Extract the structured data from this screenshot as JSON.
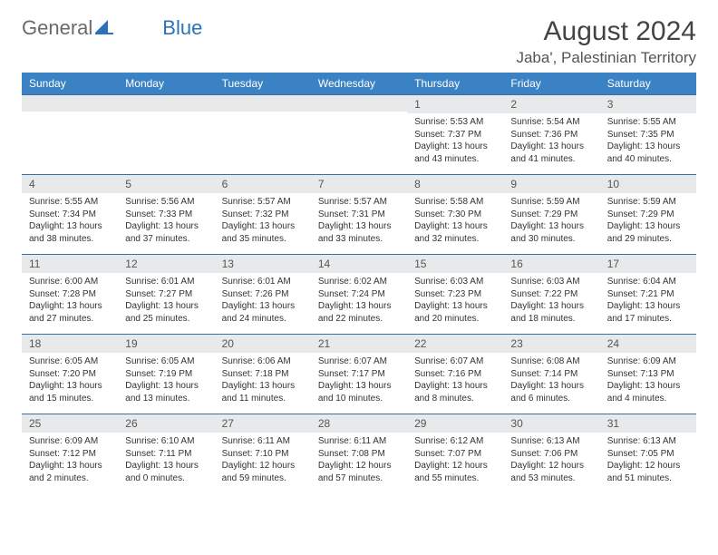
{
  "logo": {
    "text1": "General",
    "text2": "Blue"
  },
  "title": "August 2024",
  "location": "Jaba', Palestinian Territory",
  "colors": {
    "header_bg": "#3b82c4",
    "header_text": "#ffffff",
    "daynum_bg": "#e8e9ea",
    "row_border": "#3b6fa0",
    "page_bg": "#ffffff",
    "logo_gray": "#6a6a6a",
    "logo_blue": "#2d72b8"
  },
  "weekdays": [
    "Sunday",
    "Monday",
    "Tuesday",
    "Wednesday",
    "Thursday",
    "Friday",
    "Saturday"
  ],
  "weeks": [
    [
      {
        "n": "",
        "sr": "",
        "ss": "",
        "dl": ""
      },
      {
        "n": "",
        "sr": "",
        "ss": "",
        "dl": ""
      },
      {
        "n": "",
        "sr": "",
        "ss": "",
        "dl": ""
      },
      {
        "n": "",
        "sr": "",
        "ss": "",
        "dl": ""
      },
      {
        "n": "1",
        "sr": "Sunrise: 5:53 AM",
        "ss": "Sunset: 7:37 PM",
        "dl": "Daylight: 13 hours and 43 minutes."
      },
      {
        "n": "2",
        "sr": "Sunrise: 5:54 AM",
        "ss": "Sunset: 7:36 PM",
        "dl": "Daylight: 13 hours and 41 minutes."
      },
      {
        "n": "3",
        "sr": "Sunrise: 5:55 AM",
        "ss": "Sunset: 7:35 PM",
        "dl": "Daylight: 13 hours and 40 minutes."
      }
    ],
    [
      {
        "n": "4",
        "sr": "Sunrise: 5:55 AM",
        "ss": "Sunset: 7:34 PM",
        "dl": "Daylight: 13 hours and 38 minutes."
      },
      {
        "n": "5",
        "sr": "Sunrise: 5:56 AM",
        "ss": "Sunset: 7:33 PM",
        "dl": "Daylight: 13 hours and 37 minutes."
      },
      {
        "n": "6",
        "sr": "Sunrise: 5:57 AM",
        "ss": "Sunset: 7:32 PM",
        "dl": "Daylight: 13 hours and 35 minutes."
      },
      {
        "n": "7",
        "sr": "Sunrise: 5:57 AM",
        "ss": "Sunset: 7:31 PM",
        "dl": "Daylight: 13 hours and 33 minutes."
      },
      {
        "n": "8",
        "sr": "Sunrise: 5:58 AM",
        "ss": "Sunset: 7:30 PM",
        "dl": "Daylight: 13 hours and 32 minutes."
      },
      {
        "n": "9",
        "sr": "Sunrise: 5:59 AM",
        "ss": "Sunset: 7:29 PM",
        "dl": "Daylight: 13 hours and 30 minutes."
      },
      {
        "n": "10",
        "sr": "Sunrise: 5:59 AM",
        "ss": "Sunset: 7:29 PM",
        "dl": "Daylight: 13 hours and 29 minutes."
      }
    ],
    [
      {
        "n": "11",
        "sr": "Sunrise: 6:00 AM",
        "ss": "Sunset: 7:28 PM",
        "dl": "Daylight: 13 hours and 27 minutes."
      },
      {
        "n": "12",
        "sr": "Sunrise: 6:01 AM",
        "ss": "Sunset: 7:27 PM",
        "dl": "Daylight: 13 hours and 25 minutes."
      },
      {
        "n": "13",
        "sr": "Sunrise: 6:01 AM",
        "ss": "Sunset: 7:26 PM",
        "dl": "Daylight: 13 hours and 24 minutes."
      },
      {
        "n": "14",
        "sr": "Sunrise: 6:02 AM",
        "ss": "Sunset: 7:24 PM",
        "dl": "Daylight: 13 hours and 22 minutes."
      },
      {
        "n": "15",
        "sr": "Sunrise: 6:03 AM",
        "ss": "Sunset: 7:23 PM",
        "dl": "Daylight: 13 hours and 20 minutes."
      },
      {
        "n": "16",
        "sr": "Sunrise: 6:03 AM",
        "ss": "Sunset: 7:22 PM",
        "dl": "Daylight: 13 hours and 18 minutes."
      },
      {
        "n": "17",
        "sr": "Sunrise: 6:04 AM",
        "ss": "Sunset: 7:21 PM",
        "dl": "Daylight: 13 hours and 17 minutes."
      }
    ],
    [
      {
        "n": "18",
        "sr": "Sunrise: 6:05 AM",
        "ss": "Sunset: 7:20 PM",
        "dl": "Daylight: 13 hours and 15 minutes."
      },
      {
        "n": "19",
        "sr": "Sunrise: 6:05 AM",
        "ss": "Sunset: 7:19 PM",
        "dl": "Daylight: 13 hours and 13 minutes."
      },
      {
        "n": "20",
        "sr": "Sunrise: 6:06 AM",
        "ss": "Sunset: 7:18 PM",
        "dl": "Daylight: 13 hours and 11 minutes."
      },
      {
        "n": "21",
        "sr": "Sunrise: 6:07 AM",
        "ss": "Sunset: 7:17 PM",
        "dl": "Daylight: 13 hours and 10 minutes."
      },
      {
        "n": "22",
        "sr": "Sunrise: 6:07 AM",
        "ss": "Sunset: 7:16 PM",
        "dl": "Daylight: 13 hours and 8 minutes."
      },
      {
        "n": "23",
        "sr": "Sunrise: 6:08 AM",
        "ss": "Sunset: 7:14 PM",
        "dl": "Daylight: 13 hours and 6 minutes."
      },
      {
        "n": "24",
        "sr": "Sunrise: 6:09 AM",
        "ss": "Sunset: 7:13 PM",
        "dl": "Daylight: 13 hours and 4 minutes."
      }
    ],
    [
      {
        "n": "25",
        "sr": "Sunrise: 6:09 AM",
        "ss": "Sunset: 7:12 PM",
        "dl": "Daylight: 13 hours and 2 minutes."
      },
      {
        "n": "26",
        "sr": "Sunrise: 6:10 AM",
        "ss": "Sunset: 7:11 PM",
        "dl": "Daylight: 13 hours and 0 minutes."
      },
      {
        "n": "27",
        "sr": "Sunrise: 6:11 AM",
        "ss": "Sunset: 7:10 PM",
        "dl": "Daylight: 12 hours and 59 minutes."
      },
      {
        "n": "28",
        "sr": "Sunrise: 6:11 AM",
        "ss": "Sunset: 7:08 PM",
        "dl": "Daylight: 12 hours and 57 minutes."
      },
      {
        "n": "29",
        "sr": "Sunrise: 6:12 AM",
        "ss": "Sunset: 7:07 PM",
        "dl": "Daylight: 12 hours and 55 minutes."
      },
      {
        "n": "30",
        "sr": "Sunrise: 6:13 AM",
        "ss": "Sunset: 7:06 PM",
        "dl": "Daylight: 12 hours and 53 minutes."
      },
      {
        "n": "31",
        "sr": "Sunrise: 6:13 AM",
        "ss": "Sunset: 7:05 PM",
        "dl": "Daylight: 12 hours and 51 minutes."
      }
    ]
  ]
}
